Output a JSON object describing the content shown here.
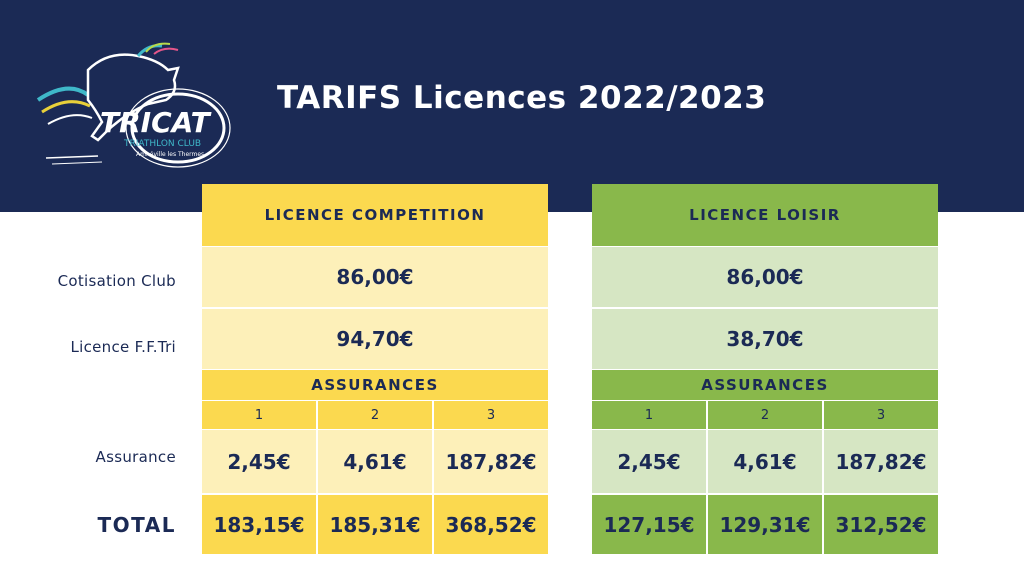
{
  "page": {
    "title": "TARIFS Licences 2022/2023",
    "logo": {
      "name": "TRICAT",
      "subtitle": "TRIATHLON CLUB",
      "place": "Amnéville les Thermes"
    }
  },
  "row_labels": {
    "cotisation": "Cotisation Club",
    "licence": "Licence F.F.Tri",
    "assurance": "Assurance",
    "total": "TOTAL"
  },
  "colors": {
    "navy": "#1b2a55",
    "competition_header": "#fbd94f",
    "competition_light": "#fdf0b9",
    "loisir_header": "#89b84b",
    "loisir_light": "#d6e6c3"
  },
  "competition": {
    "header": "LICENCE COMPETITION",
    "cotisation": "86,00€",
    "licence": "94,70€",
    "assurances_title": "ASSURANCES",
    "options": [
      "1",
      "2",
      "3"
    ],
    "assurance": [
      "2,45€",
      "4,61€",
      "187,82€"
    ],
    "total": [
      "183,15€",
      "185,31€",
      "368,52€"
    ]
  },
  "loisir": {
    "header": "LICENCE LOISIR",
    "cotisation": "86,00€",
    "licence": "38,70€",
    "assurances_title": "ASSURANCES",
    "options": [
      "1",
      "2",
      "3"
    ],
    "assurance": [
      "2,45€",
      "4,61€",
      "187,82€"
    ],
    "total": [
      "127,15€",
      "129,31€",
      "312,52€"
    ]
  }
}
